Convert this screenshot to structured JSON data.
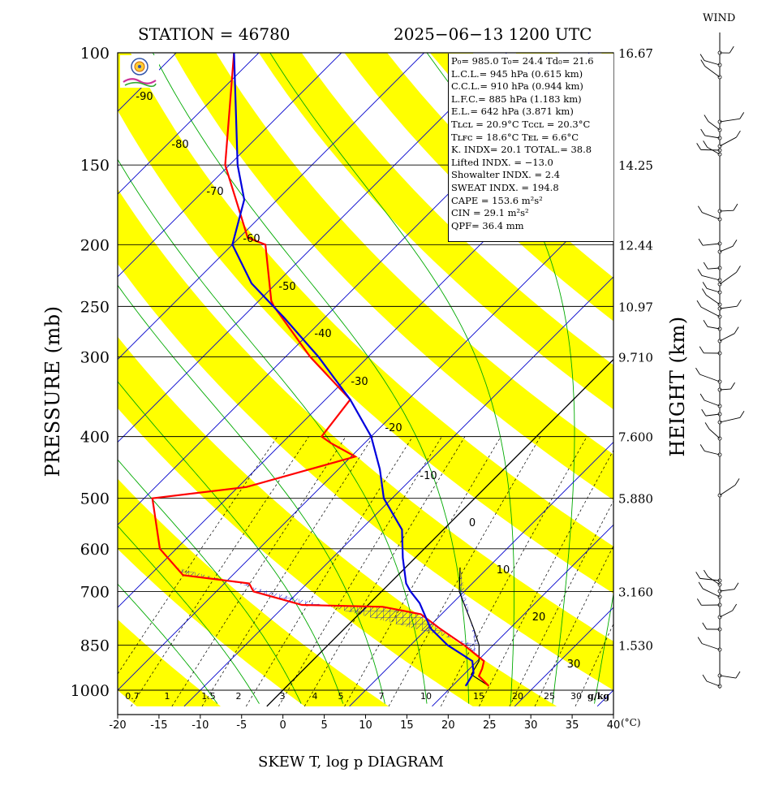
{
  "header": {
    "station": "STATION = 46780",
    "datetime": "2025−06−13 1200 UTC",
    "wind_label": "WIND"
  },
  "axes": {
    "y_label": "PRESSURE (mb)",
    "y2_label": "HEIGHT (km)",
    "x_unit": "(°C)",
    "mix_unit": "g/kg",
    "bottom_title": "SKEW T, log p DIAGRAM"
  },
  "info": {
    "lines": [
      "P₀= 985.0 T₀= 24.4 Td₀= 21.6",
      "L.C.L.= 945 hPa (0.615 km)",
      "C.C.L.= 910 hPa (0.944 km)",
      "L.F.C.= 885 hPa (1.183 km)",
      "E.L.= 642 hPa (3.871 km)",
      "Tʟᴄʟ = 20.9°C  Tᴄᴄʟ = 20.3°C",
      "Tʟꜰᴄ = 18.6°C  Tᴇʟ = 6.6°C",
      "K. INDX= 20.1  TOTAL.= 38.8",
      "Lifted INDX. = −13.0",
      "Showalter INDX. =     2.4",
      "SWEAT INDX. =   194.8",
      "CAPE =   153.6 m²s²",
      "CIN   =    29.1 m²s²",
      "QPF= 36.4 mm"
    ]
  },
  "colors": {
    "yellow": "#ffff00",
    "isotherm": "#0000cc",
    "moist": "#00aa00",
    "temp": "#ff0000",
    "dew": "#0000dd"
  },
  "chart_data": {
    "type": "line",
    "title": "SKEW T, log p DIAGRAM",
    "xlabel": "(°C)",
    "ylabel": "PRESSURE (mb)",
    "y2label": "HEIGHT (km)",
    "xlim": [
      -20,
      40
    ],
    "ylim": [
      1000,
      100
    ],
    "y_scale": "log",
    "x_ticks": [
      -20,
      -15,
      -10,
      -5,
      0,
      5,
      10,
      15,
      20,
      25,
      30,
      35,
      40
    ],
    "pressure_ticks": [
      100,
      150,
      200,
      250,
      300,
      400,
      500,
      600,
      700,
      850,
      1000
    ],
    "height_ticks": [
      {
        "p": 100,
        "km": "16.67"
      },
      {
        "p": 150,
        "km": "14.25"
      },
      {
        "p": 200,
        "km": "12.44"
      },
      {
        "p": 250,
        "km": "10.97"
      },
      {
        "p": 300,
        "km": "9.710"
      },
      {
        "p": 400,
        "km": "7.600"
      },
      {
        "p": 500,
        "km": "5.880"
      },
      {
        "p": 700,
        "km": "3.160"
      },
      {
        "p": 850,
        "km": "1.530"
      }
    ],
    "isotherm_labels": [
      {
        "t": -90,
        "label": "-90"
      },
      {
        "t": -80,
        "label": "-80"
      },
      {
        "t": -70,
        "label": "-70"
      },
      {
        "t": -60,
        "label": "-60"
      },
      {
        "t": -50,
        "label": "-50"
      },
      {
        "t": -40,
        "label": "-40"
      },
      {
        "t": -30,
        "label": "-30"
      },
      {
        "t": -20,
        "label": "-20"
      },
      {
        "t": -10,
        "label": "-10"
      },
      {
        "t": 0,
        "label": "0"
      },
      {
        "t": 10,
        "label": "10"
      },
      {
        "t": 20,
        "label": "20"
      },
      {
        "t": 30,
        "label": "30"
      }
    ],
    "mixing_ratio_labels": [
      "0.7",
      "1",
      "1.5",
      "2",
      "3",
      "4",
      "5",
      "7",
      "10",
      "15",
      "20",
      "25",
      "30"
    ],
    "series": [
      {
        "name": "temperature",
        "points": [
          {
            "p": 985,
            "t": 24.4
          },
          {
            "p": 950,
            "t": 22.0
          },
          {
            "p": 925,
            "t": 21.5
          },
          {
            "p": 900,
            "t": 20.8
          },
          {
            "p": 850,
            "t": 16.5
          },
          {
            "p": 800,
            "t": 11.5
          },
          {
            "p": 760,
            "t": 7.5
          },
          {
            "p": 740,
            "t": 2.0
          },
          {
            "p": 735,
            "t": -8.0
          },
          {
            "p": 700,
            "t": -15.5
          },
          {
            "p": 680,
            "t": -17.0
          },
          {
            "p": 660,
            "t": -26.0
          },
          {
            "p": 600,
            "t": -32.0
          },
          {
            "p": 500,
            "t": -39.0
          },
          {
            "p": 480,
            "t": -29.0
          },
          {
            "p": 430,
            "t": -19.5
          },
          {
            "p": 410,
            "t": -24.0
          },
          {
            "p": 400,
            "t": -26.0
          },
          {
            "p": 350,
            "t": -27.0
          },
          {
            "p": 300,
            "t": -37.0
          },
          {
            "p": 250,
            "t": -47.5
          },
          {
            "p": 245,
            "t": -48.5
          },
          {
            "p": 200,
            "t": -56.0
          },
          {
            "p": 195,
            "t": -59.0
          },
          {
            "p": 170,
            "t": -65.0
          },
          {
            "p": 150,
            "t": -70.5
          },
          {
            "p": 100,
            "t": -83.0
          }
        ]
      },
      {
        "name": "dewpoint",
        "points": [
          {
            "p": 985,
            "t": 21.6
          },
          {
            "p": 940,
            "t": 21.0
          },
          {
            "p": 900,
            "t": 19.4
          },
          {
            "p": 850,
            "t": 14.5
          },
          {
            "p": 800,
            "t": 10.4
          },
          {
            "p": 730,
            "t": 6.0
          },
          {
            "p": 700,
            "t": 3.5
          },
          {
            "p": 680,
            "t": 2.0
          },
          {
            "p": 620,
            "t": -1.5
          },
          {
            "p": 560,
            "t": -5.0
          },
          {
            "p": 500,
            "t": -11.0
          },
          {
            "p": 450,
            "t": -15.0
          },
          {
            "p": 400,
            "t": -20.0
          },
          {
            "p": 350,
            "t": -27.0
          },
          {
            "p": 300,
            "t": -36.0
          },
          {
            "p": 260,
            "t": -45.0
          },
          {
            "p": 230,
            "t": -53.0
          },
          {
            "p": 200,
            "t": -60.0
          },
          {
            "p": 170,
            "t": -64.0
          },
          {
            "p": 150,
            "t": -69.0
          },
          {
            "p": 100,
            "t": -83.0
          }
        ]
      }
    ],
    "parcel": [
      {
        "p": 985,
        "t": 24.4
      },
      {
        "p": 945,
        "t": 20.9
      },
      {
        "p": 900,
        "t": 20.2
      },
      {
        "p": 850,
        "t": 18.3
      },
      {
        "p": 800,
        "t": 15.6
      },
      {
        "p": 750,
        "t": 12.6
      },
      {
        "p": 700,
        "t": 9.4
      },
      {
        "p": 642,
        "t": 6.6
      }
    ],
    "grid": true,
    "legend": "none"
  }
}
